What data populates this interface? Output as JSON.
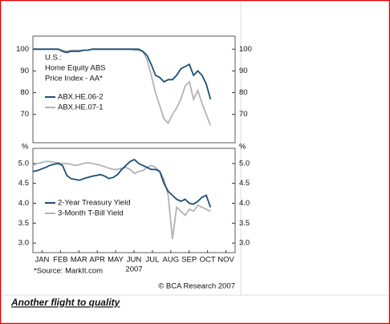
{
  "chart_data": [
    {
      "type": "line",
      "annotation": [
        "U.S.:",
        "Home Equity ABS",
        "Price Index - AA*"
      ],
      "x": [
        0,
        0.23,
        0.46,
        0.69,
        0.92,
        1.15,
        1.38,
        1.61,
        1.84,
        2.07,
        2.3,
        2.53,
        2.76,
        2.99,
        3.22,
        3.45,
        3.68,
        3.91,
        4.14,
        4.37,
        4.6,
        4.83,
        5.06,
        5.29,
        5.52,
        5.75,
        5.98,
        6.21,
        6.44,
        6.67,
        6.9,
        7.13,
        7.36,
        7.59,
        7.82,
        8.05,
        8.28,
        8.51,
        8.74,
        8.97,
        9.2,
        9.43,
        9.66
      ],
      "xlim": [
        0,
        11
      ],
      "ylim": [
        57,
        106
      ],
      "yticks": [
        70,
        80,
        90,
        100
      ],
      "series": [
        {
          "name": "ABX.HE.06-2",
          "color": "#1a4f7a",
          "values": [
            100,
            100,
            100,
            100,
            100,
            100,
            100,
            99,
            98.5,
            99,
            99,
            99,
            99.5,
            99.5,
            100,
            100,
            100,
            100,
            100,
            100,
            100,
            100,
            100,
            100,
            100,
            100,
            99,
            97,
            93,
            88,
            87,
            85,
            86,
            86,
            88,
            91,
            92,
            93,
            88,
            90,
            88,
            84,
            77
          ]
        },
        {
          "name": "ABX.HE.07-1",
          "color": "#b3b3b3",
          "values": [
            100,
            100,
            100,
            100,
            100,
            100,
            100,
            99.5,
            99,
            99.5,
            99.5,
            99.5,
            99.5,
            99.5,
            100,
            100,
            100,
            100,
            100,
            100,
            100,
            100,
            100,
            100,
            99.5,
            99.5,
            99,
            95,
            88,
            80,
            74,
            68,
            66,
            70,
            73,
            77,
            83,
            85,
            77,
            81,
            75,
            70,
            65
          ]
        }
      ]
    },
    {
      "type": "line",
      "ylabel": "%",
      "xlabel": "2007",
      "x": [
        0,
        0.23,
        0.46,
        0.69,
        0.92,
        1.15,
        1.38,
        1.61,
        1.84,
        2.07,
        2.3,
        2.53,
        2.76,
        2.99,
        3.22,
        3.45,
        3.68,
        3.91,
        4.14,
        4.37,
        4.6,
        4.83,
        5.06,
        5.29,
        5.52,
        5.75,
        5.98,
        6.21,
        6.44,
        6.67,
        6.9,
        7.13,
        7.36,
        7.59,
        7.82,
        8.05,
        8.28,
        8.51,
        8.74,
        8.97,
        9.2,
        9.43,
        9.66
      ],
      "xlim": [
        0,
        11
      ],
      "xticks": [
        {
          "value": 0.5,
          "label": "JAN"
        },
        {
          "value": 1.5,
          "label": "FEB"
        },
        {
          "value": 2.5,
          "label": "MAR"
        },
        {
          "value": 3.5,
          "label": "APR"
        },
        {
          "value": 4.5,
          "label": "MAY"
        },
        {
          "value": 5.5,
          "label": "JUN"
        },
        {
          "value": 6.5,
          "label": "JUL"
        },
        {
          "value": 7.5,
          "label": "AUG"
        },
        {
          "value": 8.5,
          "label": "SEP"
        },
        {
          "value": 9.5,
          "label": "OCT"
        },
        {
          "value": 10.5,
          "label": "NOV"
        }
      ],
      "ylim": [
        2.76,
        5.38
      ],
      "yticks": [
        {
          "value": 3,
          "label": "3.0"
        },
        3.5,
        {
          "value": 4,
          "label": "4.0"
        },
        4.5,
        {
          "value": 5,
          "label": "5.0"
        }
      ],
      "series": [
        {
          "name": "2-Year Treasury Yield",
          "color": "#1a4f7a",
          "values": [
            4.8,
            4.82,
            4.86,
            4.9,
            4.95,
            4.98,
            5.0,
            4.95,
            4.7,
            4.62,
            4.6,
            4.58,
            4.62,
            4.65,
            4.68,
            4.7,
            4.72,
            4.68,
            4.62,
            4.65,
            4.72,
            4.85,
            4.95,
            5.05,
            5.1,
            5.0,
            4.95,
            4.9,
            4.85,
            4.85,
            4.8,
            4.5,
            4.3,
            4.2,
            4.1,
            4.05,
            4.1,
            4.0,
            3.98,
            4.05,
            4.15,
            4.2,
            3.9
          ]
        },
        {
          "name": "3-Month T-Bill Yield",
          "color": "#b3b3b3",
          "values": [
            4.95,
            5.0,
            5.02,
            5.05,
            5.05,
            5.03,
            5.02,
            5.0,
            5.0,
            4.98,
            4.95,
            4.97,
            5.0,
            5.02,
            5.0,
            4.98,
            4.95,
            4.92,
            4.88,
            4.85,
            4.85,
            4.88,
            4.9,
            4.85,
            4.75,
            4.8,
            4.82,
            4.9,
            4.95,
            4.9,
            4.8,
            4.6,
            4.2,
            3.1,
            3.9,
            3.8,
            3.7,
            3.85,
            3.8,
            3.95,
            3.9,
            3.85,
            3.8
          ]
        }
      ]
    }
  ],
  "source": "*Source: MarkIt.com",
  "credit": "© BCA Research 2007",
  "caption": "Another flight to quality"
}
